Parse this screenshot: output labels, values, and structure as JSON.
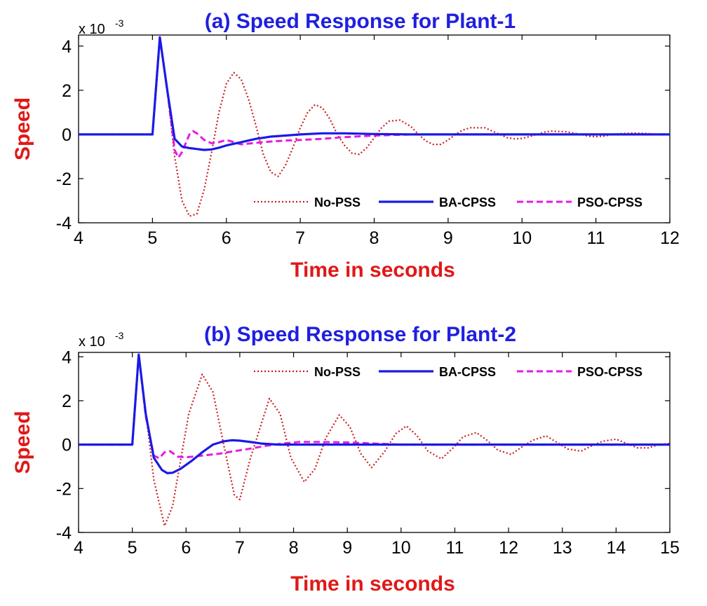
{
  "colors": {
    "title": "#1f1fe0",
    "axis_label": "#e01818",
    "no_pss": "#cc1f1f",
    "ba_cpss": "#1a1ae6",
    "pso_cpss": "#e61ae6"
  },
  "chart_data": [
    {
      "type": "line",
      "title": "(a) Speed Response for Plant-1",
      "xlabel": "Time in seconds",
      "ylabel": "Speed",
      "multiplier_base": "x 10",
      "multiplier_exp": "-3",
      "xlim": [
        4,
        12
      ],
      "ylim": [
        -4,
        4.5
      ],
      "xticks": [
        "4",
        "5",
        "6",
        "7",
        "8",
        "9",
        "10",
        "11",
        "12"
      ],
      "yticks": [
        "-4",
        "-2",
        "0",
        "2",
        "4"
      ],
      "grid": false,
      "legend_position": "bottom-right",
      "series": [
        {
          "name": "No-PSS",
          "style": "dotted",
          "x": [
            4,
            5,
            5.1,
            5.2,
            5.3,
            5.4,
            5.5,
            5.6,
            5.7,
            5.8,
            5.9,
            6.0,
            6.1,
            6.2,
            6.3,
            6.4,
            6.5,
            6.6,
            6.7,
            6.8,
            6.9,
            7.0,
            7.1,
            7.2,
            7.3,
            7.4,
            7.5,
            7.6,
            7.7,
            7.8,
            7.9,
            8.0,
            8.1,
            8.2,
            8.35,
            8.5,
            8.6,
            8.7,
            8.8,
            8.9,
            9.0,
            9.1,
            9.2,
            9.3,
            9.5,
            9.7,
            9.8,
            9.9,
            10.0,
            10.1,
            10.2,
            10.3,
            10.4,
            10.6,
            10.8,
            10.9,
            11.0,
            11.1,
            11.2,
            11.3,
            11.5,
            11.7,
            11.8,
            11.9,
            12.0
          ],
          "y": [
            0,
            0,
            4.4,
            2.0,
            -1.0,
            -3.0,
            -3.7,
            -3.6,
            -2.5,
            -0.8,
            1.0,
            2.3,
            2.8,
            2.5,
            1.6,
            0.4,
            -0.9,
            -1.7,
            -1.9,
            -1.4,
            -0.6,
            0.3,
            1.0,
            1.35,
            1.2,
            0.7,
            0.0,
            -0.5,
            -0.85,
            -0.9,
            -0.6,
            -0.15,
            0.3,
            0.6,
            0.65,
            0.35,
            0.0,
            -0.3,
            -0.45,
            -0.45,
            -0.25,
            0.0,
            0.2,
            0.3,
            0.3,
            0.0,
            -0.15,
            -0.2,
            -0.18,
            -0.1,
            0.0,
            0.1,
            0.15,
            0.12,
            0.0,
            -0.08,
            -0.1,
            -0.08,
            -0.02,
            0.03,
            0.06,
            0.04,
            0.0,
            -0.02,
            0.0
          ]
        },
        {
          "name": "BA-CPSS",
          "style": "solid",
          "x": [
            4,
            5,
            5.1,
            5.2,
            5.3,
            5.4,
            5.5,
            5.6,
            5.7,
            5.8,
            5.9,
            6.0,
            6.2,
            6.4,
            6.6,
            6.8,
            7.0,
            7.3,
            7.6,
            8.0,
            8.5,
            9.0,
            12.0
          ],
          "y": [
            0,
            0,
            4.4,
            2.0,
            -0.2,
            -0.55,
            -0.62,
            -0.66,
            -0.7,
            -0.68,
            -0.6,
            -0.5,
            -0.35,
            -0.2,
            -0.1,
            -0.05,
            0.0,
            0.05,
            0.05,
            0.02,
            0.0,
            0.0,
            0.0
          ]
        },
        {
          "name": "PSO-CPSS",
          "style": "dashed",
          "x": [
            4,
            5,
            5.1,
            5.2,
            5.3,
            5.35,
            5.4,
            5.5,
            5.55,
            5.6,
            5.7,
            5.8,
            5.9,
            6.0,
            6.1,
            6.2,
            6.4,
            6.6,
            6.8,
            7.0,
            7.3,
            7.6,
            8.0,
            8.5,
            9.0,
            12.0
          ],
          "y": [
            0,
            0,
            4.4,
            2.0,
            -0.7,
            -1.05,
            -0.8,
            0.0,
            0.15,
            0.05,
            -0.25,
            -0.4,
            -0.35,
            -0.25,
            -0.35,
            -0.45,
            -0.38,
            -0.32,
            -0.28,
            -0.25,
            -0.2,
            -0.12,
            -0.05,
            0.0,
            0.0,
            0.0
          ]
        }
      ]
    },
    {
      "type": "line",
      "title": "(b) Speed Response for Plant-2",
      "xlabel": "Time in seconds",
      "ylabel": "Speed",
      "multiplier_base": "x 10",
      "multiplier_exp": "-3",
      "xlim": [
        4,
        15
      ],
      "ylim": [
        -4,
        4.2
      ],
      "xticks": [
        "4",
        "5",
        "6",
        "7",
        "8",
        "9",
        "10",
        "11",
        "12",
        "13",
        "14",
        "15"
      ],
      "yticks": [
        "-4",
        "-2",
        "0",
        "2",
        "4"
      ],
      "grid": false,
      "legend_position": "top-right",
      "series": [
        {
          "name": "No-PSS",
          "style": "dotted",
          "x": [
            4,
            5,
            5.12,
            5.25,
            5.4,
            5.6,
            5.75,
            5.9,
            6.05,
            6.3,
            6.5,
            6.7,
            6.9,
            7.0,
            7.2,
            7.55,
            7.75,
            7.95,
            8.2,
            8.4,
            8.6,
            8.85,
            9.05,
            9.25,
            9.45,
            9.7,
            9.9,
            10.1,
            10.3,
            10.5,
            10.75,
            10.95,
            11.15,
            11.4,
            11.6,
            11.8,
            12.05,
            12.25,
            12.45,
            12.7,
            12.9,
            13.1,
            13.35,
            13.55,
            13.75,
            14.0,
            14.2,
            14.4,
            14.6,
            14.8,
            15.0
          ],
          "y": [
            0,
            0,
            4.1,
            1.5,
            -1.6,
            -3.7,
            -2.8,
            -0.7,
            1.4,
            3.2,
            2.4,
            0.0,
            -2.3,
            -2.5,
            -0.6,
            2.1,
            1.4,
            -0.6,
            -1.7,
            -1.1,
            0.3,
            1.35,
            0.8,
            -0.4,
            -1.05,
            -0.3,
            0.5,
            0.85,
            0.4,
            -0.3,
            -0.65,
            -0.2,
            0.35,
            0.55,
            0.2,
            -0.25,
            -0.45,
            -0.1,
            0.2,
            0.4,
            0.1,
            -0.2,
            -0.3,
            -0.05,
            0.15,
            0.25,
            0.05,
            -0.15,
            -0.15,
            0.0,
            0.05
          ]
        },
        {
          "name": "BA-CPSS",
          "style": "solid",
          "x": [
            4,
            5,
            5.12,
            5.25,
            5.4,
            5.55,
            5.65,
            5.75,
            5.9,
            6.1,
            6.3,
            6.5,
            6.7,
            6.85,
            7.0,
            7.2,
            7.4,
            7.7,
            8.0,
            9.0,
            15.0
          ],
          "y": [
            0,
            0,
            4.1,
            1.4,
            -0.6,
            -1.15,
            -1.3,
            -1.28,
            -1.1,
            -0.75,
            -0.35,
            0.0,
            0.15,
            0.2,
            0.18,
            0.12,
            0.05,
            0.0,
            0.0,
            0.0,
            0.0
          ]
        },
        {
          "name": "PSO-CPSS",
          "style": "dashed",
          "x": [
            4,
            5,
            5.12,
            5.25,
            5.4,
            5.5,
            5.6,
            5.7,
            5.85,
            6.0,
            6.3,
            6.6,
            6.9,
            7.2,
            7.5,
            7.8,
            8.1,
            8.5,
            9.0,
            9.5,
            10.0,
            15.0
          ],
          "y": [
            0,
            0,
            4.1,
            1.3,
            -0.5,
            -0.62,
            -0.35,
            -0.3,
            -0.55,
            -0.58,
            -0.5,
            -0.42,
            -0.3,
            -0.18,
            -0.05,
            0.05,
            0.12,
            0.12,
            0.1,
            0.05,
            0.0,
            0.0
          ]
        }
      ]
    }
  ]
}
